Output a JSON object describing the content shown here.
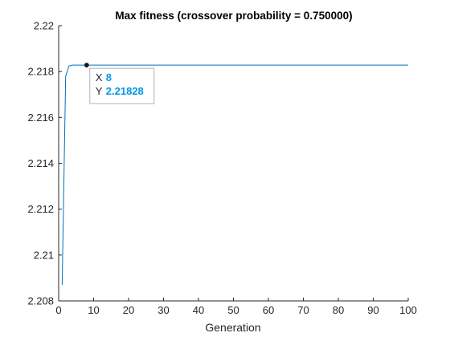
{
  "chart_data": {
    "type": "line",
    "title": "Max fitness (crossover probability = 0.750000)",
    "xlabel": "Generation",
    "ylabel": "",
    "xlim": [
      0,
      100
    ],
    "ylim": [
      2.208,
      2.22
    ],
    "x_ticks": [
      0,
      10,
      20,
      30,
      40,
      50,
      60,
      70,
      80,
      90,
      100
    ],
    "x_tick_labels": [
      "0",
      "10",
      "20",
      "30",
      "40",
      "50",
      "60",
      "70",
      "80",
      "90",
      "100"
    ],
    "y_ticks": [
      2.208,
      2.21,
      2.212,
      2.214,
      2.216,
      2.218,
      2.22
    ],
    "y_tick_labels": [
      "2.208",
      "2.21",
      "2.212",
      "2.214",
      "2.216",
      "2.218",
      "2.22"
    ],
    "grid": false,
    "series": [
      {
        "color": "#0072BD",
        "x": [
          1,
          2,
          3,
          4,
          5,
          6,
          7,
          8,
          9,
          10,
          20,
          30,
          40,
          50,
          60,
          70,
          80,
          90,
          100
        ],
        "y": [
          2.2087,
          2.2178,
          2.21825,
          2.21828,
          2.21828,
          2.21828,
          2.21828,
          2.21828,
          2.21828,
          2.21828,
          2.21828,
          2.21828,
          2.21828,
          2.21828,
          2.21828,
          2.21828,
          2.21828,
          2.21828,
          2.21828
        ]
      }
    ],
    "datatip": {
      "x": 8,
      "y": 2.21828,
      "x_key": "X",
      "y_key": "Y",
      "x_text": "8",
      "y_text": "2.21828",
      "value_color": "#0096E6",
      "marker_color": "#1A1A1A"
    }
  }
}
